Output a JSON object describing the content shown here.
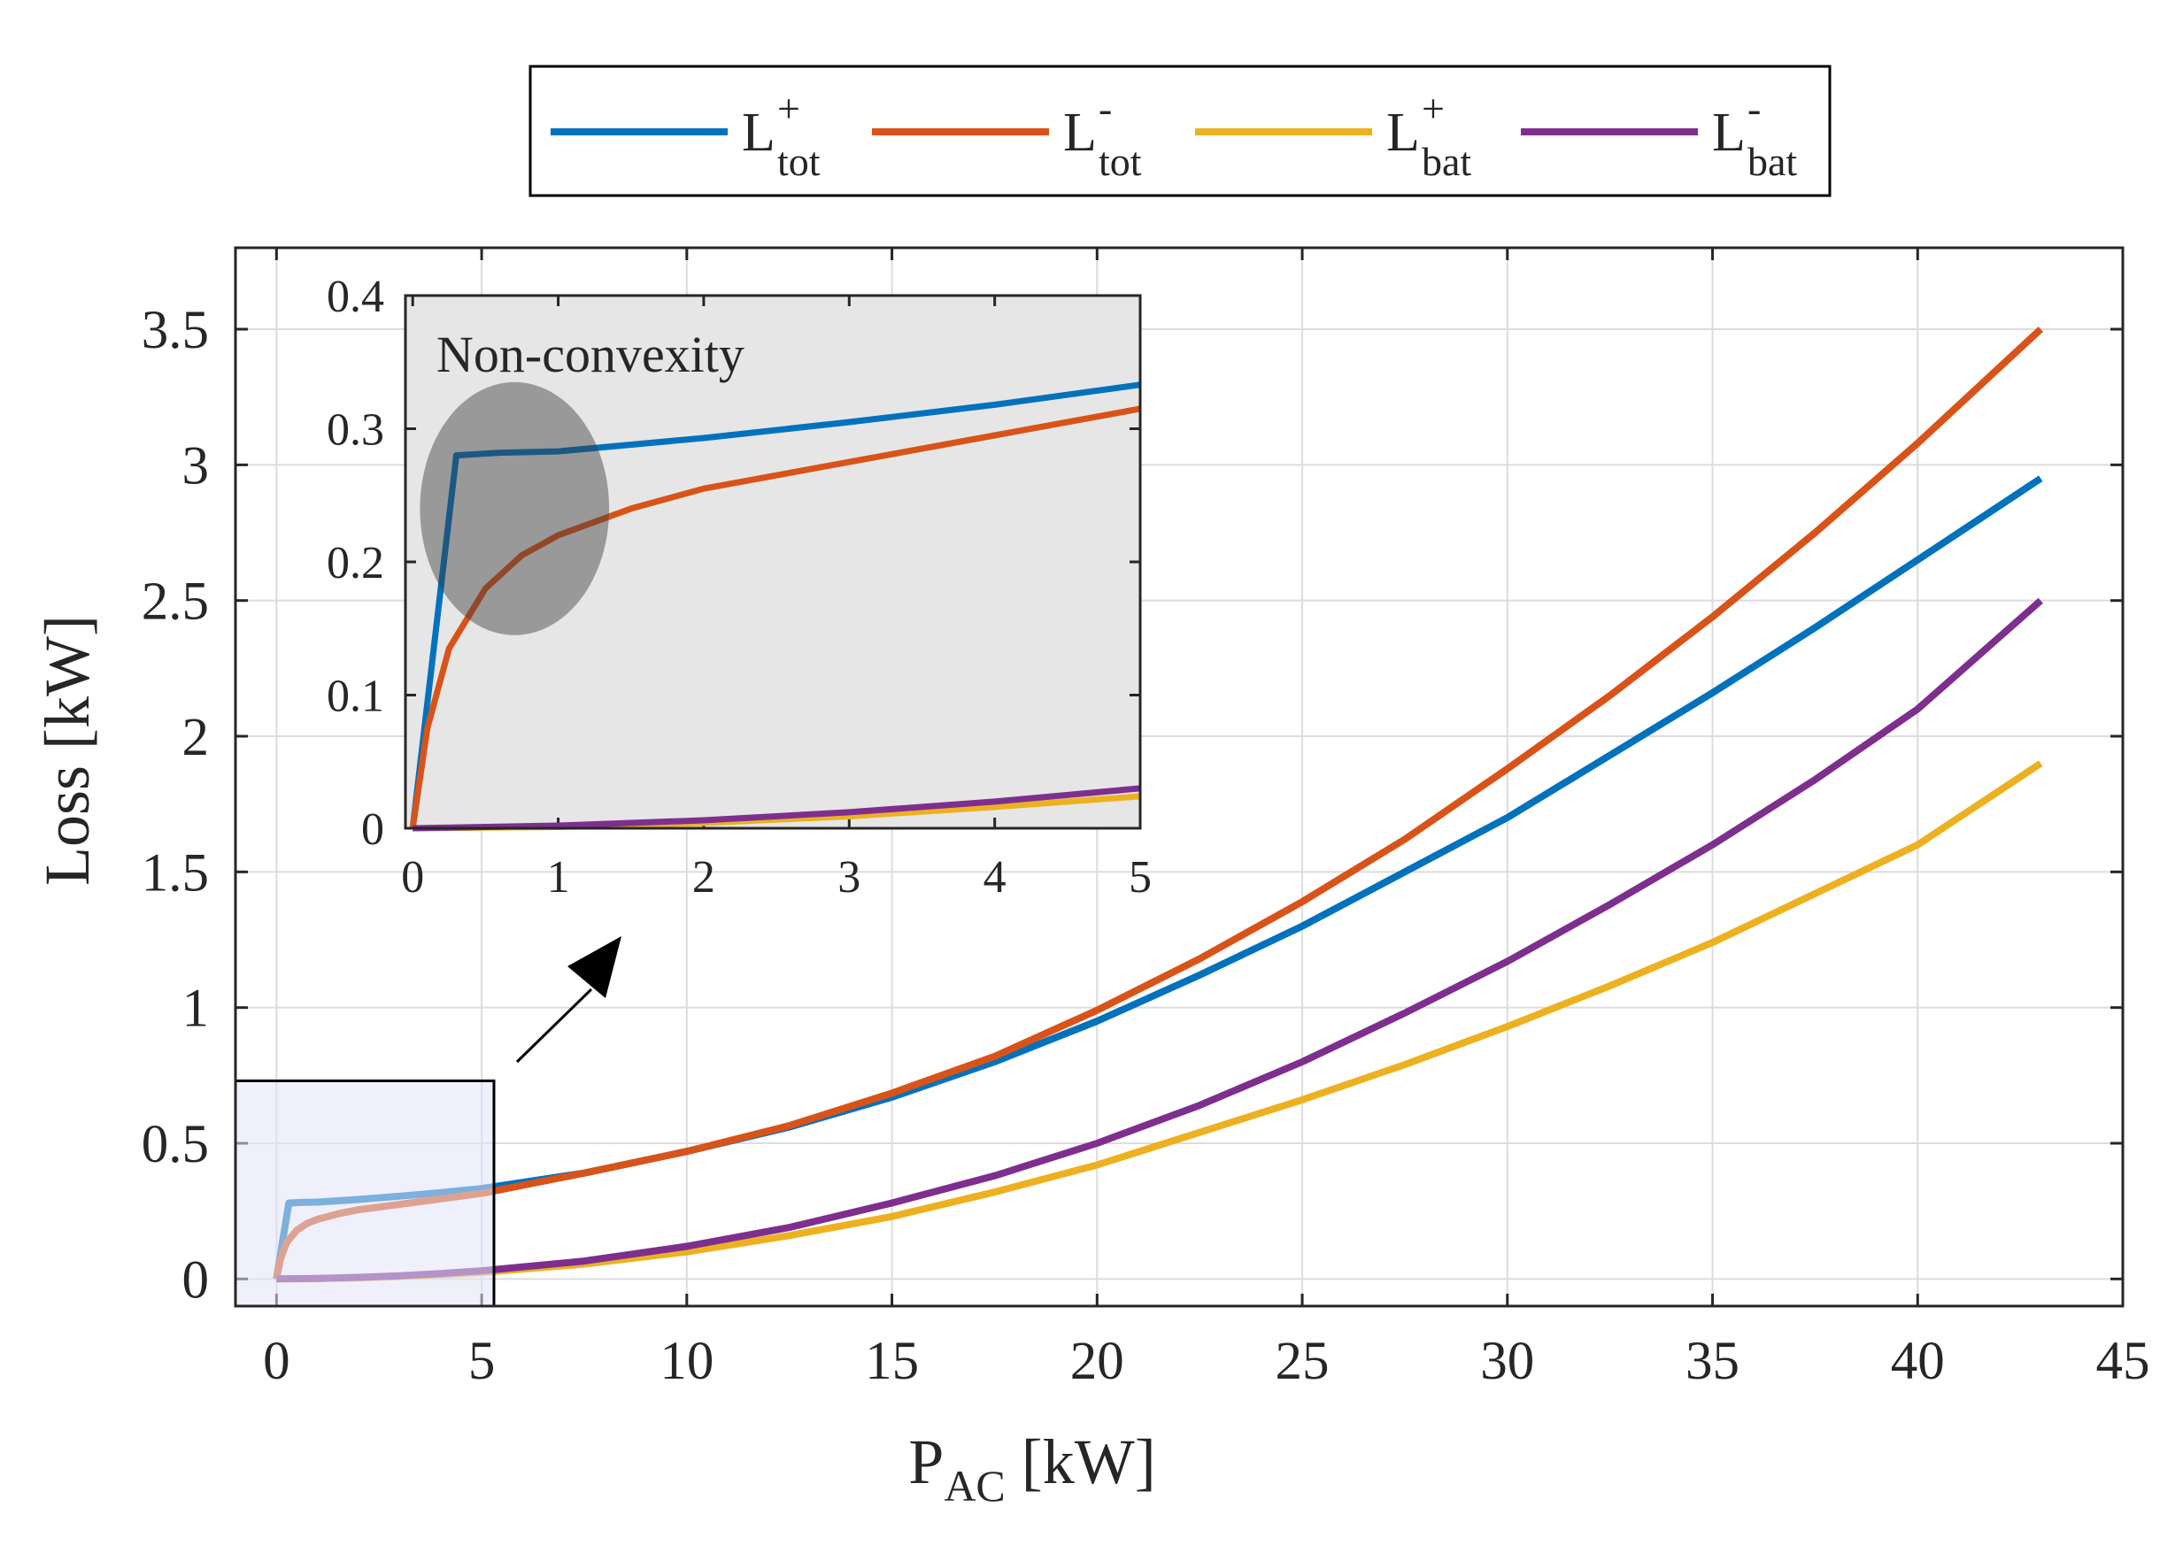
{
  "chart_data": {
    "type": "line",
    "xlabel": {
      "main": "P",
      "sub": "AC",
      "unit": "[kW]"
    },
    "ylabel": "Loss [kW]",
    "xlim": [
      -1,
      45
    ],
    "ylim": [
      -0.1,
      3.8
    ],
    "xticks": [
      0,
      5,
      10,
      15,
      20,
      25,
      30,
      35,
      40,
      45
    ],
    "yticks": [
      0,
      0.5,
      1,
      1.5,
      2,
      2.5,
      3,
      3.5
    ],
    "xtick_labels": [
      "0",
      "5",
      "10",
      "15",
      "20",
      "25",
      "30",
      "35",
      "40",
      "45"
    ],
    "ytick_labels": [
      "0",
      "0.5",
      "1",
      "1.5",
      "2",
      "2.5",
      "3",
      "3.5"
    ],
    "grid": true,
    "legend_position": "top, outside, horizontal",
    "series": [
      {
        "name": "L_tot^+",
        "label_main": "L",
        "label_sup": "+",
        "label_sub": "tot",
        "color": "#0072BD",
        "x": [
          0,
          0.3,
          0.6,
          1,
          2,
          3,
          4,
          5,
          7.5,
          10,
          12.5,
          15,
          17.5,
          20,
          22.5,
          25,
          27.5,
          30,
          32.5,
          35,
          37.5,
          40,
          43
        ],
        "y": [
          0,
          0.28,
          0.282,
          0.283,
          0.293,
          0.305,
          0.318,
          0.333,
          0.39,
          0.47,
          0.56,
          0.67,
          0.8,
          0.95,
          1.12,
          1.3,
          1.5,
          1.7,
          1.93,
          2.16,
          2.4,
          2.65,
          2.95
        ]
      },
      {
        "name": "L_tot^-",
        "label_main": "L",
        "label_sup": "-",
        "label_sub": "tot",
        "color": "#D95319",
        "x": [
          0,
          0.1,
          0.25,
          0.5,
          0.75,
          1,
          1.5,
          2,
          3,
          4,
          5,
          7.5,
          10,
          12.5,
          15,
          17.5,
          20,
          22.5,
          25,
          27.5,
          30,
          32.5,
          35,
          37.5,
          40,
          43
        ],
        "y": [
          0,
          0.075,
          0.135,
          0.18,
          0.205,
          0.22,
          0.24,
          0.255,
          0.275,
          0.295,
          0.315,
          0.39,
          0.47,
          0.565,
          0.685,
          0.82,
          0.99,
          1.18,
          1.39,
          1.62,
          1.88,
          2.15,
          2.44,
          2.75,
          3.08,
          3.5
        ]
      },
      {
        "name": "L_bat^+",
        "label_main": "L",
        "label_sup": "+",
        "label_sub": "bat",
        "color": "#EDB120",
        "x": [
          0,
          1,
          2,
          3,
          4,
          5,
          7.5,
          10,
          12.5,
          15,
          17.5,
          20,
          22.5,
          25,
          27.5,
          30,
          32.5,
          35,
          37.5,
          40,
          43
        ],
        "y": [
          0,
          0.001,
          0.004,
          0.009,
          0.016,
          0.024,
          0.055,
          0.1,
          0.16,
          0.23,
          0.32,
          0.42,
          0.54,
          0.66,
          0.79,
          0.93,
          1.08,
          1.24,
          1.42,
          1.6,
          1.9
        ]
      },
      {
        "name": "L_bat^-",
        "label_main": "L",
        "label_sup": "-",
        "label_sub": "bat",
        "color": "#7E2F8E",
        "x": [
          0,
          1,
          2,
          3,
          4,
          5,
          7.5,
          10,
          12.5,
          15,
          17.5,
          20,
          22.5,
          25,
          27.5,
          30,
          32.5,
          35,
          37.5,
          40,
          43
        ],
        "y": [
          0,
          0.002,
          0.006,
          0.012,
          0.02,
          0.03,
          0.066,
          0.12,
          0.19,
          0.28,
          0.38,
          0.5,
          0.64,
          0.8,
          0.98,
          1.17,
          1.38,
          1.6,
          1.84,
          2.1,
          2.5
        ]
      }
    ],
    "zoom_region": {
      "x": [
        -1,
        5.3
      ],
      "y": [
        -0.1,
        0.73
      ]
    },
    "inset": {
      "xlim": [
        -0.05,
        5
      ],
      "ylim": [
        0,
        0.4
      ],
      "xticks": [
        0,
        1,
        2,
        3,
        4,
        5
      ],
      "yticks": [
        0,
        0.1,
        0.2,
        0.3,
        0.4
      ],
      "xtick_labels": [
        "0",
        "1",
        "2",
        "3",
        "4",
        "5"
      ],
      "ytick_labels": [
        "0",
        "0.1",
        "0.2",
        "0.3",
        "0.4"
      ],
      "annotation": "Non-convexity",
      "highlight_ellipse": {
        "cx": 0.7,
        "cy": 0.24,
        "rx": 0.65,
        "ry": 0.095
      }
    }
  }
}
